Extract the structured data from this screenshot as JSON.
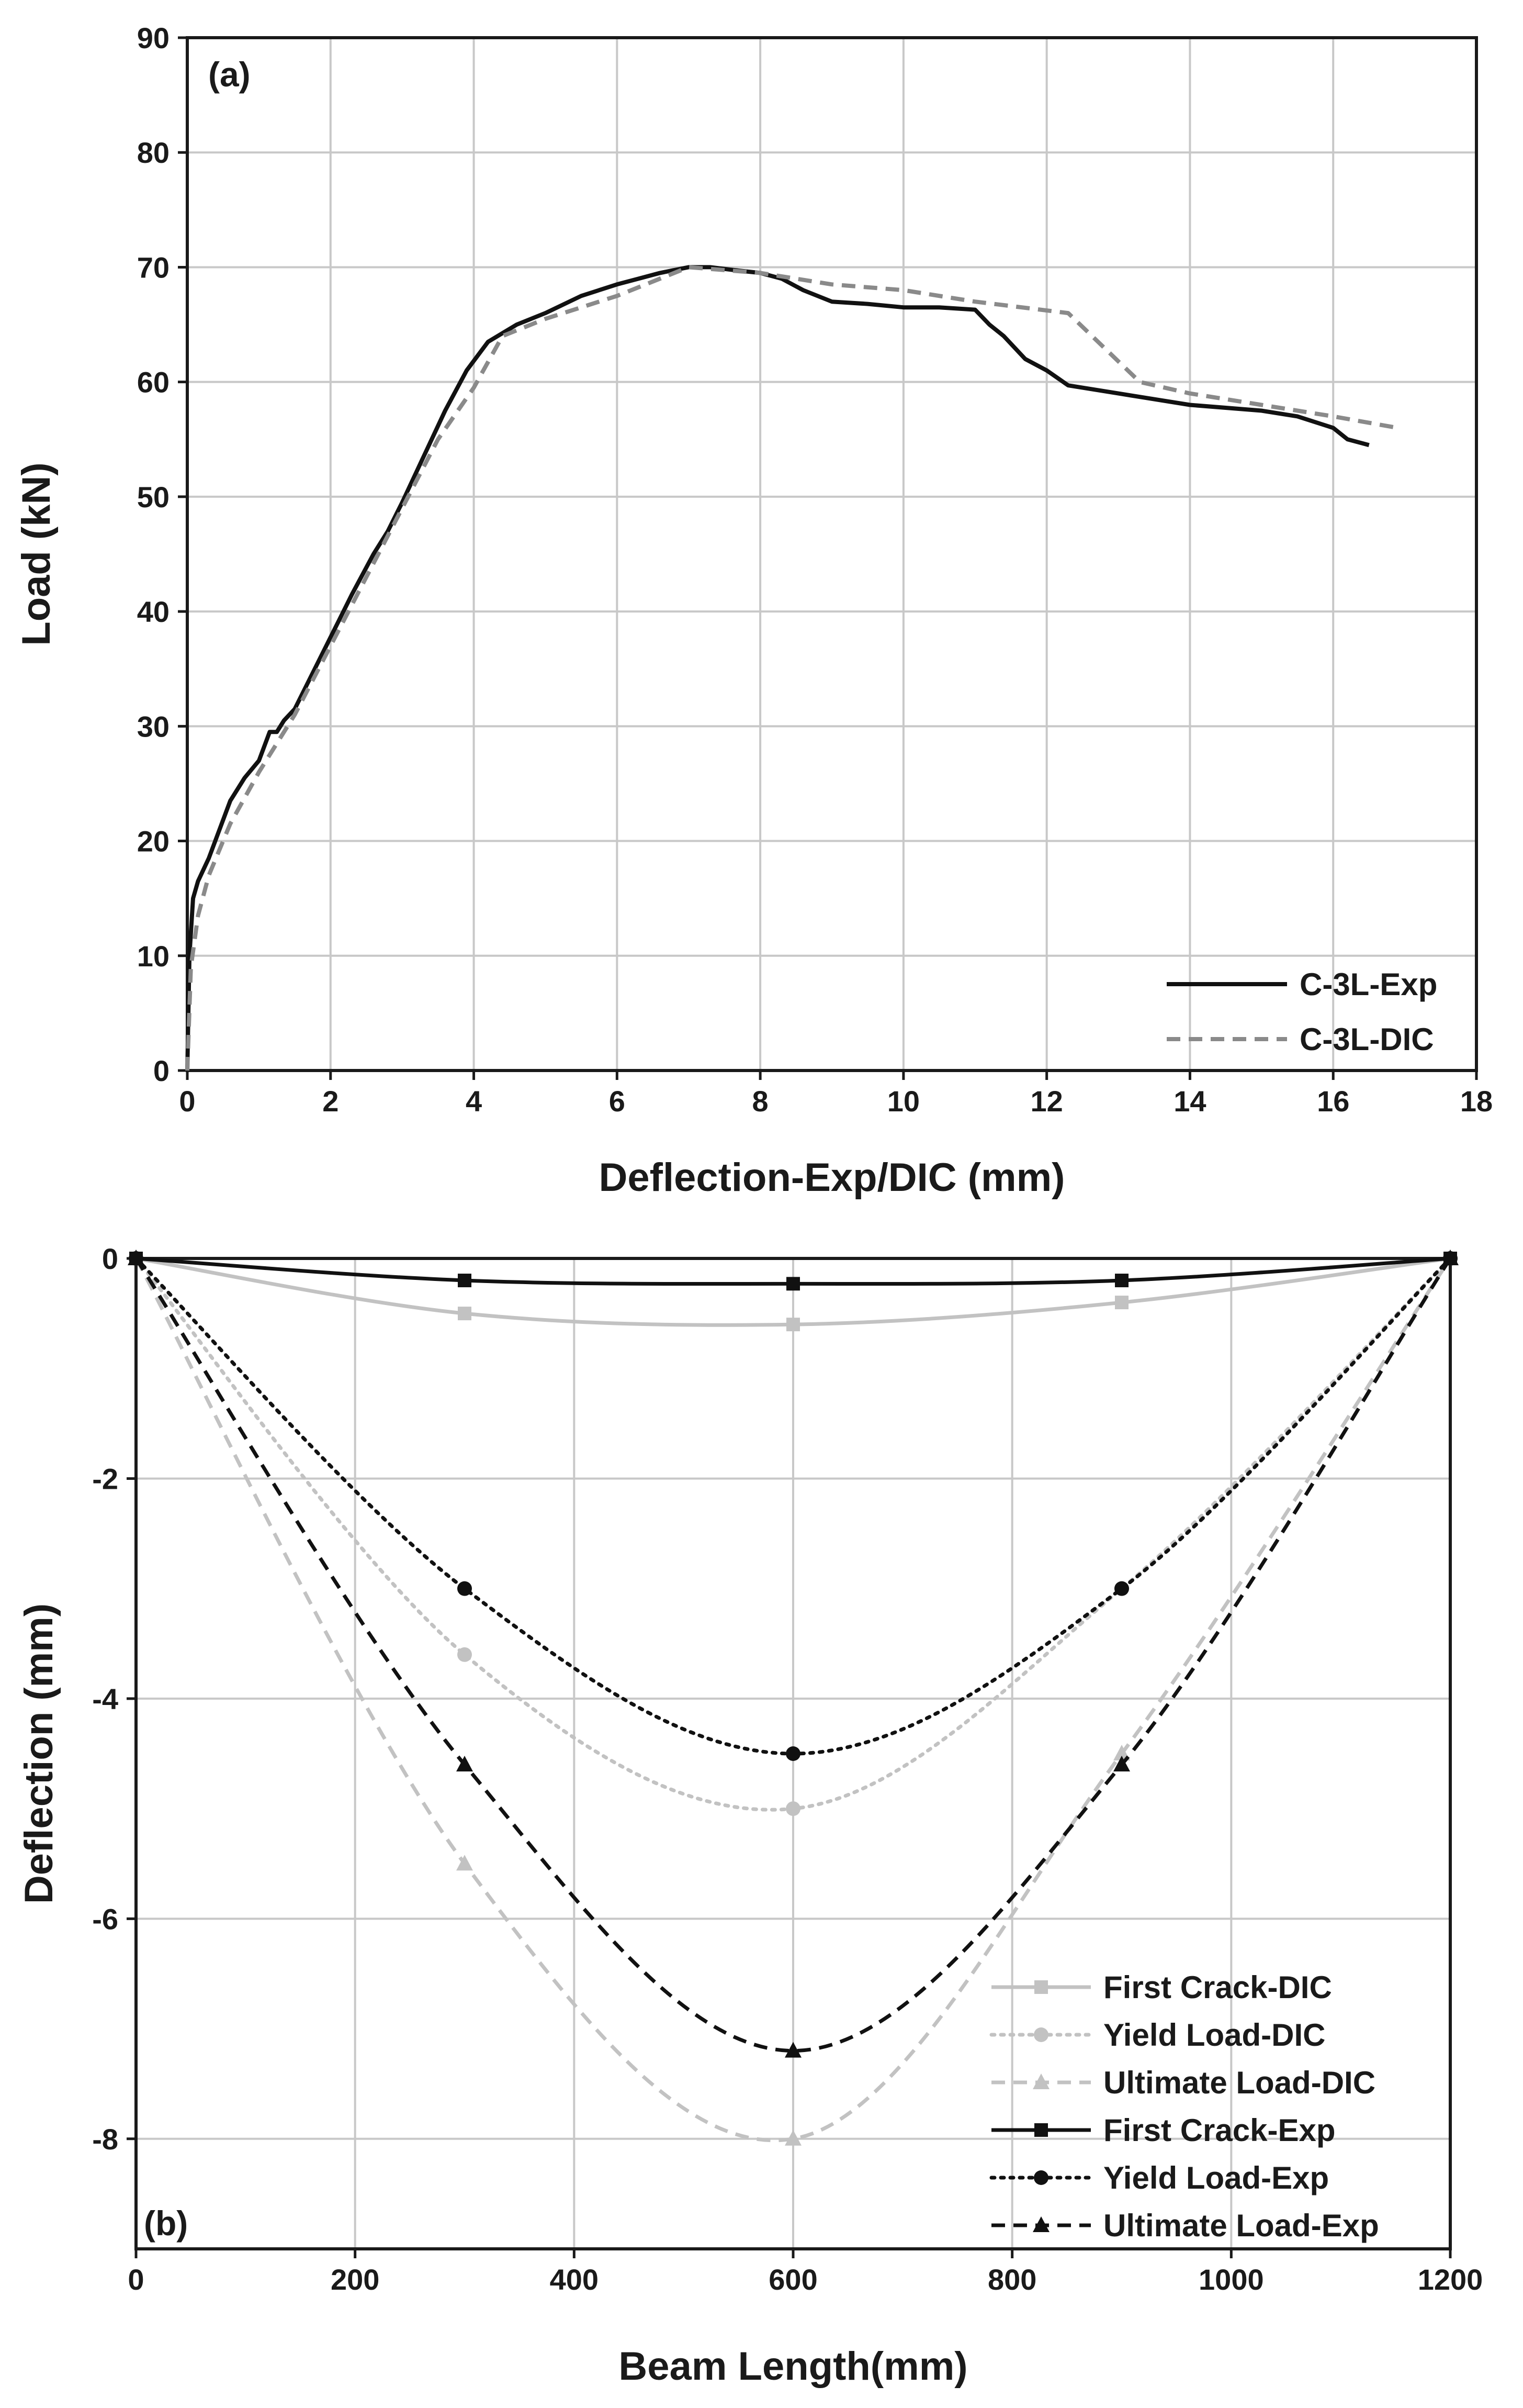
{
  "chart_data": [
    {
      "type": "line",
      "panel_label": "(a)",
      "xlabel": "Deflection-Exp/DIC (mm)",
      "ylabel": "Load (kN)",
      "xlim": [
        0,
        18
      ],
      "ylim": [
        0,
        90
      ],
      "xticks": [
        0,
        2,
        4,
        6,
        8,
        10,
        12,
        14,
        16,
        18
      ],
      "yticks": [
        0,
        10,
        20,
        30,
        40,
        50,
        60,
        70,
        80,
        90
      ],
      "grid": true,
      "legend_position": "bottom-right",
      "series": [
        {
          "name": "C-3L-Exp",
          "color": "#111111",
          "style": "solid",
          "x": [
            0,
            0.03,
            0.08,
            0.15,
            0.3,
            0.45,
            0.6,
            0.8,
            1.0,
            1.15,
            1.25,
            1.35,
            1.5,
            1.7,
            1.9,
            2.1,
            2.3,
            2.6,
            2.8,
            3.0,
            3.3,
            3.6,
            3.9,
            4.2,
            4.6,
            5.0,
            5.5,
            6.0,
            6.3,
            6.6,
            7.0,
            7.3,
            7.7,
            8.0,
            8.3,
            8.6,
            9.0,
            9.5,
            10.0,
            10.5,
            11.0,
            11.2,
            11.4,
            11.7,
            12.0,
            12.3,
            13.0,
            14.0,
            15.0,
            15.5,
            16.0,
            16.2,
            16.5
          ],
          "y": [
            0,
            10,
            15,
            16.5,
            18.5,
            21,
            23.5,
            25.5,
            27,
            29.5,
            29.5,
            30.5,
            31.5,
            34,
            36.5,
            39,
            41.5,
            45,
            47,
            49.5,
            53.5,
            57.5,
            61,
            63.5,
            65,
            66,
            67.5,
            68.5,
            69,
            69.5,
            70,
            70,
            69.7,
            69.5,
            69,
            68,
            67,
            66.8,
            66.5,
            66.5,
            66.3,
            65,
            64,
            62,
            61,
            59.7,
            59,
            58,
            57.5,
            57,
            56,
            55,
            54.5
          ]
        },
        {
          "name": "C-3L-DIC",
          "color": "#8a8a8a",
          "style": "dashed",
          "x": [
            0,
            0.05,
            0.15,
            0.3,
            0.6,
            1.0,
            1.5,
            2.0,
            2.5,
            3.0,
            3.5,
            4.0,
            4.4,
            5.0,
            6.0,
            7.0,
            8.0,
            9.0,
            10.0,
            11.0,
            12.3,
            13.3,
            14.0,
            15.0,
            16.0,
            16.9
          ],
          "y": [
            0,
            9,
            13.5,
            17,
            21.5,
            26,
            31,
            37,
            43,
            49,
            55,
            59.5,
            64,
            65.5,
            67.5,
            70,
            69.5,
            68.5,
            68,
            67,
            66,
            60,
            59,
            58,
            57,
            56
          ]
        }
      ]
    },
    {
      "type": "line",
      "panel_label": "(b)",
      "xlabel": "Beam Length(mm)",
      "ylabel": "Deflection (mm)",
      "xlim": [
        0,
        1200
      ],
      "ylim": [
        -9,
        0
      ],
      "xticks": [
        0,
        200,
        400,
        600,
        800,
        1000,
        1200
      ],
      "yticks": [
        0,
        -2,
        -4,
        -6,
        -8
      ],
      "grid": true,
      "legend_position": "bottom-right",
      "x": [
        0,
        300,
        600,
        900,
        1200
      ],
      "series": [
        {
          "name": "First Crack-DIC",
          "color": "#c2c2c2",
          "style": "solid",
          "marker": "square",
          "values": [
            0,
            -0.5,
            -0.6,
            -0.4,
            0
          ]
        },
        {
          "name": "Yield Load-DIC",
          "color": "#c2c2c2",
          "style": "dotted",
          "marker": "circle",
          "values": [
            0,
            -3.6,
            -5.0,
            -3.0,
            0
          ]
        },
        {
          "name": "Ultimate Load-DIC",
          "color": "#c2c2c2",
          "style": "dashed",
          "marker": "triangle",
          "values": [
            0,
            -5.5,
            -8.0,
            -4.5,
            0
          ]
        },
        {
          "name": "First Crack-Exp",
          "color": "#111111",
          "style": "solid",
          "marker": "square",
          "values": [
            0,
            -0.2,
            -0.23,
            -0.2,
            0
          ]
        },
        {
          "name": "Yield Load-Exp",
          "color": "#111111",
          "style": "dotted",
          "marker": "circle",
          "values": [
            0,
            -3.0,
            -4.5,
            -3.0,
            0
          ]
        },
        {
          "name": "Ultimate Load-Exp",
          "color": "#111111",
          "style": "dashed",
          "marker": "triangle",
          "values": [
            0,
            -4.6,
            -7.2,
            -4.6,
            0
          ]
        }
      ]
    }
  ]
}
